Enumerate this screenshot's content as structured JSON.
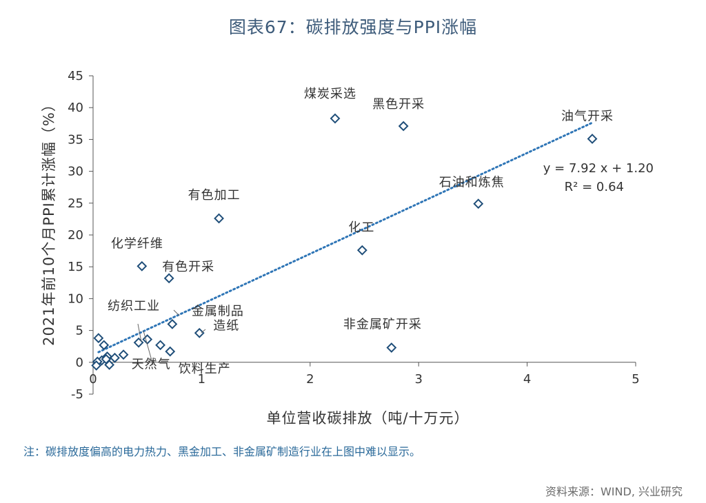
{
  "page": {
    "title": "图表67：碳排放强度与PPI涨幅",
    "note": "注：碳排放度偏高的电力热力、黑金加工、非金属矿制造行业在上图中难以显示。",
    "source": "资料来源：WIND, 兴业研究"
  },
  "chart_data": {
    "type": "scatter",
    "title": "图表67：碳排放强度与PPI涨幅",
    "xlabel": "单位营收碳排放（吨/十万元）",
    "ylabel": "2021年前10个月PPI累计涨幅（%）",
    "xlim": [
      0,
      5
    ],
    "ylim": [
      -5,
      45
    ],
    "x_ticks": [
      "0",
      "1",
      "2",
      "3",
      "4",
      "5"
    ],
    "y_ticks": [
      "-5",
      "0",
      "5",
      "10",
      "15",
      "20",
      "25",
      "30",
      "35",
      "40",
      "45"
    ],
    "grid": false,
    "marker": "open-diamond",
    "colors": {
      "marker": "#1f4e79",
      "trendline": "#2e75b6",
      "axis": "#555555",
      "text": "#333333"
    },
    "points": [
      {
        "x": 2.23,
        "y": 38.3,
        "label": "煤炭采选"
      },
      {
        "x": 2.86,
        "y": 37.1,
        "label": "黑色开采"
      },
      {
        "x": 4.6,
        "y": 35.1,
        "label": "油气开采"
      },
      {
        "x": 3.55,
        "y": 24.9,
        "label": "石油和炼焦"
      },
      {
        "x": 1.16,
        "y": 22.6,
        "label": "有色加工"
      },
      {
        "x": 2.48,
        "y": 17.6,
        "label": "化工"
      },
      {
        "x": 0.45,
        "y": 15.1,
        "label": "化学纤维"
      },
      {
        "x": 0.7,
        "y": 13.2,
        "label": "有色开采"
      },
      {
        "x": 0.73,
        "y": 6.0,
        "label": "金属制品"
      },
      {
        "x": 0.98,
        "y": 4.6,
        "label": "造纸"
      },
      {
        "x": 0.42,
        "y": 3.1,
        "label": "纺织工业"
      },
      {
        "x": 0.5,
        "y": 3.6,
        "label": "天然气"
      },
      {
        "x": 0.71,
        "y": 1.7,
        "label": "饮料生产"
      },
      {
        "x": 2.75,
        "y": 2.3,
        "label": "非金属矿开采"
      },
      {
        "x": 0.62,
        "y": 2.7,
        "label": ""
      },
      {
        "x": 0.05,
        "y": 3.8,
        "label": ""
      },
      {
        "x": 0.1,
        "y": 2.7,
        "label": ""
      },
      {
        "x": 0.28,
        "y": 1.2,
        "label": ""
      },
      {
        "x": 0.2,
        "y": 0.7,
        "label": ""
      },
      {
        "x": 0.13,
        "y": 0.9,
        "label": ""
      },
      {
        "x": 0.08,
        "y": 0.3,
        "label": ""
      },
      {
        "x": 0.04,
        "y": 0.1,
        "label": ""
      },
      {
        "x": 0.15,
        "y": -0.4,
        "label": ""
      },
      {
        "x": 0.12,
        "y": 0.5,
        "label": ""
      },
      {
        "x": 0.03,
        "y": -0.5,
        "label": ""
      }
    ],
    "trendline": {
      "slope": 7.92,
      "intercept": 1.2,
      "x_range": [
        0.05,
        4.6
      ],
      "style": "dotted"
    },
    "annotations": {
      "equation": "y = 7.92 x + 1.20",
      "r2": "R² = 0.64"
    }
  }
}
